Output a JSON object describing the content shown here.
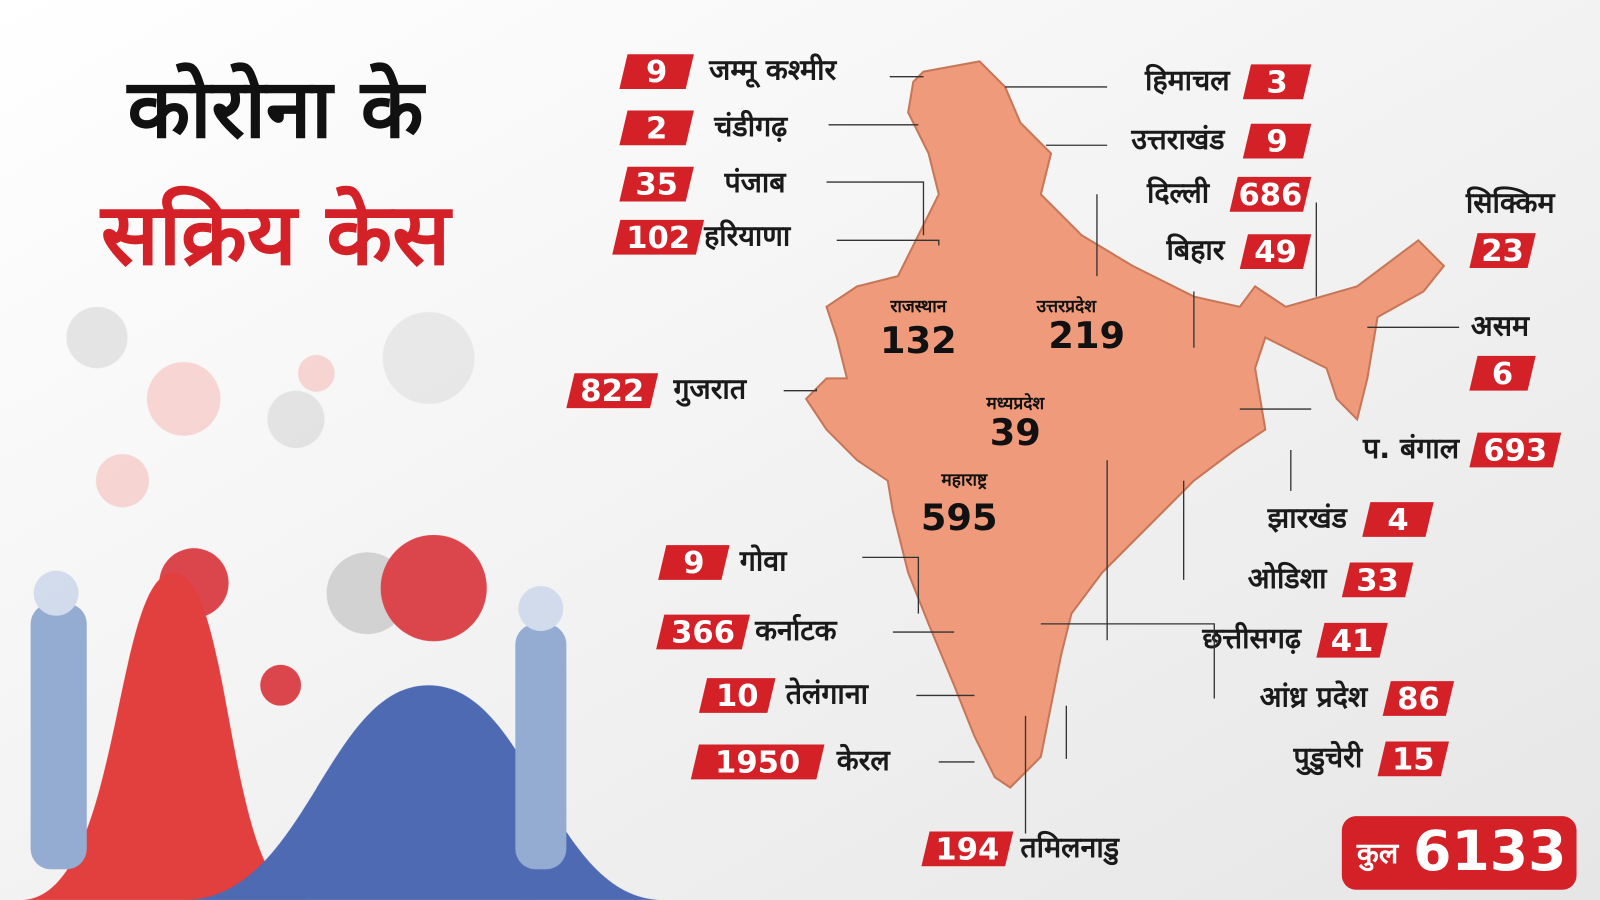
{
  "header": {
    "title_lines": [
      "कोरोना के",
      "सक्रिय केस"
    ]
  },
  "states": [
    {
      "name": "जम्मू कश्मीर",
      "cases": 9
    },
    {
      "name": "चंडीगढ़",
      "cases": 2
    },
    {
      "name": "पंजाब",
      "cases": 35
    },
    {
      "name": "हरियाणा",
      "cases": 102
    },
    {
      "name": "गुजरात",
      "cases": 822
    },
    {
      "name": "गोवा",
      "cases": 9
    },
    {
      "name": "कर्नाटक",
      "cases": 366
    },
    {
      "name": "तेलंगाना",
      "cases": 10
    },
    {
      "name": "केरल",
      "cases": 1950
    },
    {
      "name": "तमिलनाडु",
      "cases": 194
    },
    {
      "name": "हिमाचल",
      "cases": 3
    },
    {
      "name": "उत्तराखंड",
      "cases": 9
    },
    {
      "name": "दिल्ली",
      "cases": 686
    },
    {
      "name": "बिहार",
      "cases": 49
    },
    {
      "name": "सिक्किम",
      "cases": 23
    },
    {
      "name": "असम",
      "cases": 6
    },
    {
      "name": "प. बंगाल",
      "cases": 693
    },
    {
      "name": "झारखंड",
      "cases": 4
    },
    {
      "name": "ओडिशा",
      "cases": 33
    },
    {
      "name": "छत्तीसगढ़",
      "cases": 41
    },
    {
      "name": "आंध्र प्रदेश",
      "cases": 86
    },
    {
      "name": "पुडुचेरी",
      "cases": 15
    },
    {
      "name": "राजस्थान",
      "cases": 132
    },
    {
      "name": "उत्तरप्रदेश",
      "cases": 219
    },
    {
      "name": "मध्यप्रदेश",
      "cases": 39
    },
    {
      "name": "महाराष्ट्र",
      "cases": 595
    }
  ],
  "total": {
    "label": "कुल",
    "value": 6133
  }
}
